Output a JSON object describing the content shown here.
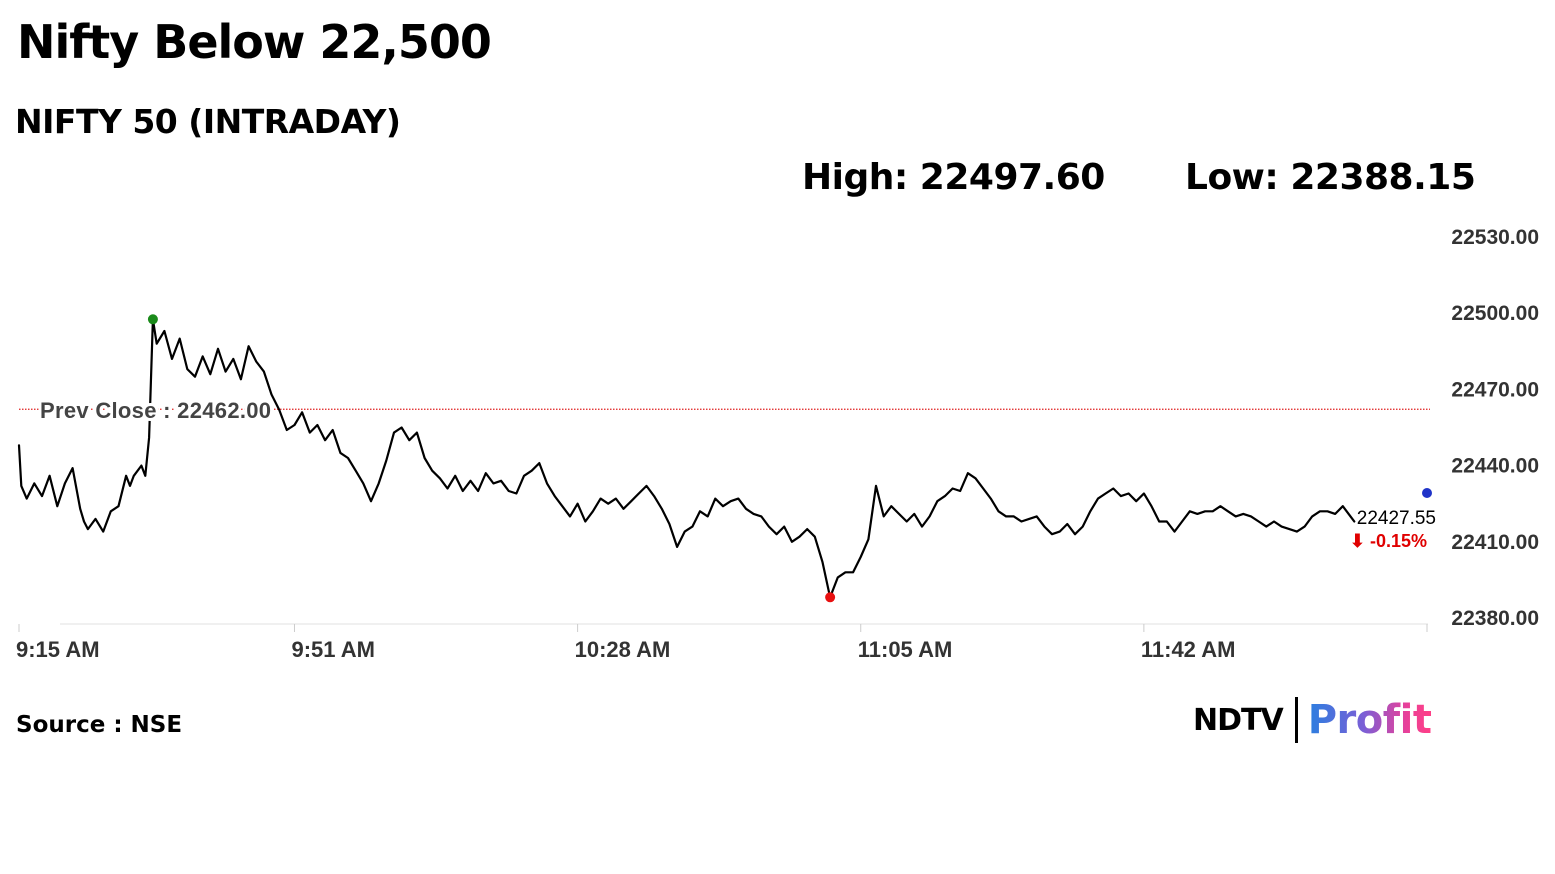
{
  "headline": "Nifty Below 22,500",
  "subheadline": "NIFTY 50 (INTRADAY)",
  "stats": {
    "high_label": "High: 22497.60",
    "low_label": "Low: 22388.15"
  },
  "chart_data": {
    "type": "line",
    "ylim": [
      22380,
      22530
    ],
    "y_ticks": [
      22530,
      22500,
      22470,
      22440,
      22410,
      22380
    ],
    "y_tick_labels": [
      "22530.00",
      "22500.00",
      "22470.00",
      "22440.00",
      "22410.00",
      "22380.00"
    ],
    "x_ticks": [
      "9:15 AM",
      "9:51 AM",
      "10:28 AM",
      "11:05 AM",
      "11:42 AM"
    ],
    "x_tick_minutes": [
      0,
      36,
      73,
      110,
      147
    ],
    "x_range_minutes": [
      0,
      184
    ],
    "prev_close": {
      "label": "Prev Close : 22462.00",
      "value": 22462.0
    },
    "last": {
      "value_label": "22427.55",
      "change_label": "⬇ -0.15%",
      "value": 22427.55
    },
    "high_point": {
      "minute": 17.5,
      "value": 22497.6
    },
    "low_point": {
      "minute": 106,
      "value": 22388.15
    },
    "current_marker": {
      "minute": 184,
      "value": 22430
    },
    "series": [
      {
        "points": [
          [
            0,
            22448
          ],
          [
            0.3,
            22432
          ],
          [
            1,
            22427
          ],
          [
            2,
            22433
          ],
          [
            3,
            22428
          ],
          [
            4,
            22436
          ],
          [
            5,
            22424
          ],
          [
            6,
            22433
          ],
          [
            7,
            22439
          ],
          [
            8,
            22423
          ],
          [
            8.5,
            22418
          ],
          [
            9,
            22415
          ],
          [
            10,
            22419
          ],
          [
            11,
            22414
          ],
          [
            12,
            22422
          ],
          [
            13,
            22424
          ],
          [
            14,
            22436
          ],
          [
            14.5,
            22432
          ],
          [
            15,
            22436
          ],
          [
            16,
            22440
          ],
          [
            16.5,
            22436
          ],
          [
            17,
            22451
          ],
          [
            17.5,
            22497.6
          ],
          [
            18,
            22488
          ],
          [
            19,
            22493
          ],
          [
            20,
            22482
          ],
          [
            21,
            22490
          ],
          [
            22,
            22478
          ],
          [
            23,
            22475
          ],
          [
            24,
            22483
          ],
          [
            25,
            22476
          ],
          [
            26,
            22486
          ],
          [
            27,
            22477
          ],
          [
            28,
            22482
          ],
          [
            29,
            22474
          ],
          [
            30,
            22487
          ],
          [
            31,
            22481
          ],
          [
            32,
            22477
          ],
          [
            33,
            22468
          ],
          [
            34,
            22462
          ],
          [
            35,
            22454
          ],
          [
            36,
            22456
          ],
          [
            37,
            22461
          ],
          [
            38,
            22453
          ],
          [
            39,
            22456
          ],
          [
            40,
            22450
          ],
          [
            41,
            22454
          ],
          [
            42,
            22445
          ],
          [
            43,
            22443
          ],
          [
            44,
            22438
          ],
          [
            45,
            22433
          ],
          [
            46,
            22426
          ],
          [
            47,
            22433
          ],
          [
            48,
            22442
          ],
          [
            49,
            22453
          ],
          [
            50,
            22455
          ],
          [
            51,
            22450
          ],
          [
            52,
            22453
          ],
          [
            53,
            22443
          ],
          [
            54,
            22438
          ],
          [
            55,
            22435
          ],
          [
            56,
            22431
          ],
          [
            57,
            22436
          ],
          [
            58,
            22430
          ],
          [
            59,
            22434
          ],
          [
            60,
            22430
          ],
          [
            61,
            22437
          ],
          [
            62,
            22433
          ],
          [
            63,
            22434
          ],
          [
            64,
            22430
          ],
          [
            65,
            22429
          ],
          [
            66,
            22436
          ],
          [
            67,
            22438
          ],
          [
            68,
            22441
          ],
          [
            69,
            22433
          ],
          [
            70,
            22428
          ],
          [
            71,
            22424
          ],
          [
            72,
            22420
          ],
          [
            73,
            22425
          ],
          [
            74,
            22418
          ],
          [
            75,
            22422
          ],
          [
            76,
            22427
          ],
          [
            77,
            22425
          ],
          [
            78,
            22427
          ],
          [
            79,
            22423
          ],
          [
            80,
            22426
          ],
          [
            81,
            22429
          ],
          [
            82,
            22432
          ],
          [
            83,
            22428
          ],
          [
            84,
            22423
          ],
          [
            85,
            22417
          ],
          [
            86,
            22408
          ],
          [
            87,
            22414
          ],
          [
            88,
            22416
          ],
          [
            89,
            22422
          ],
          [
            90,
            22420
          ],
          [
            91,
            22427
          ],
          [
            92,
            22424
          ],
          [
            93,
            22426
          ],
          [
            94,
            22427
          ],
          [
            95,
            22423
          ],
          [
            96,
            22421
          ],
          [
            97,
            22420
          ],
          [
            98,
            22416
          ],
          [
            99,
            22413
          ],
          [
            100,
            22416
          ],
          [
            101,
            22410
          ],
          [
            102,
            22412
          ],
          [
            103,
            22415
          ],
          [
            104,
            22412
          ],
          [
            105,
            22402
          ],
          [
            106,
            22388.15
          ],
          [
            107,
            22396
          ],
          [
            108,
            22398
          ],
          [
            109,
            22398
          ],
          [
            110,
            22404
          ],
          [
            111,
            22411
          ],
          [
            112,
            22432
          ],
          [
            113,
            22420
          ],
          [
            114,
            22424
          ],
          [
            115,
            22421
          ],
          [
            116,
            22418
          ],
          [
            117,
            22421
          ],
          [
            118,
            22416
          ],
          [
            119,
            22420
          ],
          [
            120,
            22426
          ],
          [
            121,
            22428
          ],
          [
            122,
            22431
          ],
          [
            123,
            22430
          ],
          [
            124,
            22437
          ],
          [
            125,
            22435
          ],
          [
            126,
            22431
          ],
          [
            127,
            22427
          ],
          [
            128,
            22422
          ],
          [
            129,
            22420
          ],
          [
            130,
            22420
          ],
          [
            131,
            22418
          ],
          [
            132,
            22419
          ],
          [
            133,
            22420
          ],
          [
            134,
            22416
          ],
          [
            135,
            22413
          ],
          [
            136,
            22414
          ],
          [
            137,
            22417
          ],
          [
            138,
            22413
          ],
          [
            139,
            22416
          ],
          [
            140,
            22422
          ],
          [
            141,
            22427
          ],
          [
            142,
            22429
          ],
          [
            143,
            22431
          ],
          [
            144,
            22428
          ],
          [
            145,
            22429
          ],
          [
            146,
            22426
          ],
          [
            147,
            22429
          ],
          [
            148,
            22424
          ],
          [
            149,
            22418
          ],
          [
            150,
            22418
          ],
          [
            151,
            22414
          ],
          [
            152,
            22418
          ],
          [
            153,
            22422
          ],
          [
            154,
            22421
          ],
          [
            155,
            22422
          ],
          [
            156,
            22422
          ],
          [
            157,
            22424
          ],
          [
            158,
            22422
          ],
          [
            159,
            22420
          ],
          [
            160,
            22421
          ],
          [
            161,
            22420
          ],
          [
            162,
            22418
          ],
          [
            163,
            22416
          ],
          [
            164,
            22418
          ],
          [
            165,
            22416
          ],
          [
            166,
            22415
          ],
          [
            167,
            22414
          ],
          [
            168,
            22416
          ],
          [
            169,
            22420
          ],
          [
            170,
            22422
          ],
          [
            171,
            22422
          ],
          [
            172,
            22421
          ],
          [
            173,
            22424
          ],
          [
            174,
            22420
          ],
          [
            174.5,
            22418
          ]
        ]
      }
    ]
  },
  "source": "Source : NSE",
  "logo": {
    "ndtv": "NDTV",
    "profit": "Profit"
  },
  "colors": {
    "line": "#000000",
    "prev_close_line": "#e02020",
    "high_marker": "#1a8a1a",
    "low_marker": "#e81010",
    "current_marker": "#1f33c8",
    "change_negative": "#e00000",
    "axis": "#e0e0e0",
    "label_text": "#444444"
  }
}
